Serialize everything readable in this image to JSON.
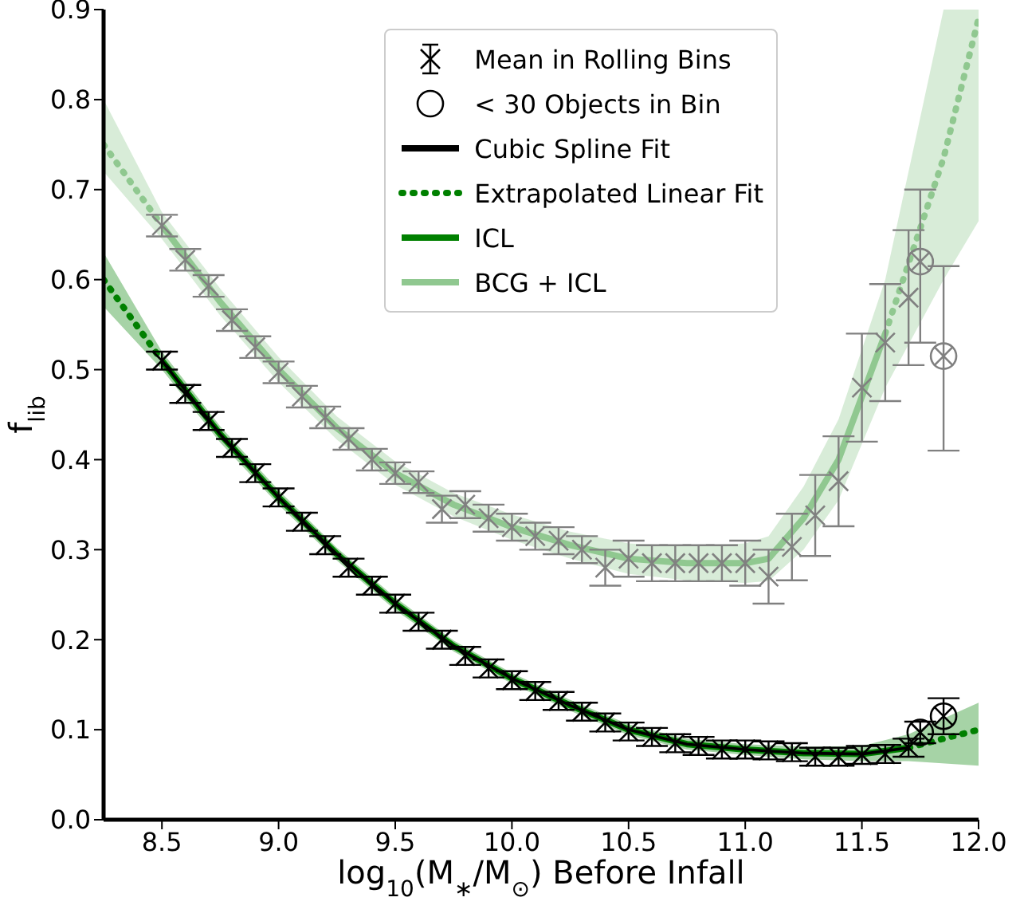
{
  "chart_data": {
    "type": "line",
    "xlabel": "log$_{10}$(M$_{∗}$/M$_{⊙}$) Before Infall",
    "ylabel": "f$_{lib}$",
    "xlim": [
      8.25,
      12.0
    ],
    "xticks": [
      8.5,
      {
        "value": 9,
        "label": "9.0"
      },
      9.5,
      {
        "value": 10,
        "label": "10.0"
      },
      10.5,
      {
        "value": 11,
        "label": "11.0"
      },
      11.5,
      {
        "value": 12,
        "label": "12.0"
      }
    ],
    "ylim": [
      0,
      0.9
    ],
    "yticks": [
      {
        "value": 0,
        "label": "0.0"
      },
      0.1,
      0.2,
      0.3,
      0.4,
      0.5,
      0.6,
      0.7,
      0.8,
      0.9
    ],
    "legend": "top right",
    "series": [
      {
        "name": "Mean in Rolling Bins",
        "type": "scatter",
        "marker": "cross",
        "color": "#000000",
        "x": [
          8.5,
          8.6,
          8.7,
          8.8,
          8.9,
          9.0,
          9.1,
          9.2,
          9.3,
          9.4,
          9.5,
          9.6,
          9.7,
          9.8,
          9.9,
          10.0,
          10.1,
          10.2,
          10.3,
          10.4,
          10.5,
          10.6,
          10.7,
          10.8,
          10.9,
          11.0,
          11.1,
          11.2,
          11.3,
          11.4,
          11.5,
          11.6,
          11.7
        ],
        "values": [
          0.51,
          0.473,
          0.443,
          0.413,
          0.385,
          0.358,
          0.331,
          0.305,
          0.28,
          0.26,
          0.24,
          0.22,
          0.2,
          0.182,
          0.168,
          0.155,
          0.143,
          0.132,
          0.12,
          0.108,
          0.098,
          0.092,
          0.085,
          0.082,
          0.078,
          0.078,
          0.077,
          0.075,
          0.07,
          0.07,
          0.072,
          0.073,
          0.08
        ],
        "errors": [
          0.01,
          0.01,
          0.01,
          0.01,
          0.01,
          0.01,
          0.01,
          0.01,
          0.01,
          0.01,
          0.01,
          0.01,
          0.01,
          0.01,
          0.01,
          0.01,
          0.01,
          0.01,
          0.01,
          0.01,
          0.01,
          0.01,
          0.01,
          0.01,
          0.01,
          0.01,
          0.01,
          0.01,
          0.01,
          0.01,
          0.01,
          0.01,
          0.01
        ]
      },
      {
        "name": "< 30 Objects in Bin",
        "type": "scatter",
        "marker": "circle",
        "color": "#000000",
        "x": [
          11.75,
          11.85
        ],
        "values": [
          0.097,
          0.115
        ],
        "errors": [
          0.012,
          0.02
        ]
      },
      {
        "name": "Cubic Spline Fit",
        "line_style": "solid",
        "color": "#000000",
        "x": [
          8.5,
          8.75,
          9.0,
          9.25,
          9.5,
          9.75,
          10.0,
          10.25,
          10.5,
          10.75,
          11.0,
          11.25,
          11.5,
          11.7
        ],
        "values": [
          0.51,
          0.428,
          0.358,
          0.295,
          0.24,
          0.193,
          0.157,
          0.127,
          0.1,
          0.084,
          0.078,
          0.074,
          0.073,
          0.08
        ]
      },
      {
        "name": "Extrapolated Linear Fit",
        "line_style": "dotted",
        "color": "#008000",
        "x": [
          8.25,
          8.5,
          10.0,
          11.7,
          12.0
        ],
        "values": [
          0.6,
          0.51,
          null,
          0.08,
          0.1
        ],
        "lower": [
          0.57,
          0.5,
          null,
          0.065,
          0.06
        ],
        "upper": [
          0.63,
          0.52,
          null,
          0.095,
          0.13
        ]
      },
      {
        "name": "ICL",
        "line_style": "solid",
        "color": "#008000",
        "x": [
          8.5,
          8.75,
          9.0,
          9.25,
          9.5,
          9.75,
          10.0,
          10.25,
          10.5,
          10.75,
          11.0,
          11.25,
          11.5,
          11.7
        ],
        "values": [
          0.51,
          0.428,
          0.358,
          0.295,
          0.24,
          0.193,
          0.157,
          0.127,
          0.1,
          0.084,
          0.078,
          0.074,
          0.073,
          0.08
        ],
        "lower": [
          0.5,
          0.419,
          0.35,
          0.288,
          0.233,
          0.187,
          0.151,
          0.121,
          0.094,
          0.078,
          0.072,
          0.067,
          0.065,
          0.065
        ],
        "upper": [
          0.52,
          0.437,
          0.366,
          0.302,
          0.247,
          0.199,
          0.163,
          0.133,
          0.106,
          0.09,
          0.084,
          0.081,
          0.082,
          0.095
        ]
      },
      {
        "name": "BCG + ICL",
        "line_style": "solid",
        "color": "#90c890",
        "x": [
          8.5,
          8.75,
          9.0,
          9.25,
          9.5,
          9.75,
          10.0,
          10.25,
          10.5,
          10.75,
          11.0,
          11.1,
          11.25,
          11.4,
          11.6
        ],
        "values": [
          0.66,
          0.575,
          0.5,
          0.435,
          0.385,
          0.35,
          0.325,
          0.305,
          0.29,
          0.285,
          0.285,
          0.29,
          0.335,
          0.4,
          0.54
        ],
        "lower": [
          0.645,
          0.56,
          0.486,
          0.422,
          0.372,
          0.337,
          0.311,
          0.29,
          0.273,
          0.266,
          0.263,
          0.265,
          0.3,
          0.355,
          0.48
        ],
        "upper": [
          0.675,
          0.59,
          0.514,
          0.448,
          0.398,
          0.363,
          0.339,
          0.32,
          0.307,
          0.304,
          0.307,
          0.315,
          0.37,
          0.445,
          0.6
        ]
      },
      {
        "line_style": "dotted",
        "color": "#90c890",
        "x": [
          8.25,
          8.5,
          10.0,
          11.6,
          11.85,
          12.0
        ],
        "values": [
          0.75,
          0.66,
          null,
          0.54,
          0.735,
          0.89
        ],
        "lower": [
          0.72,
          0.645,
          null,
          0.48,
          0.6,
          0.665
        ],
        "upper": [
          0.8,
          0.675,
          null,
          0.6,
          0.9,
          0.9
        ]
      },
      {
        "type": "scatter",
        "marker": "cross",
        "color": "#808080",
        "x": [
          8.5,
          8.6,
          8.7,
          8.8,
          8.9,
          9.0,
          9.1,
          9.2,
          9.3,
          9.4,
          9.5,
          9.6,
          9.7,
          9.8,
          9.9,
          10.0,
          10.1,
          10.2,
          10.3,
          10.4,
          10.5,
          10.6,
          10.7,
          10.8,
          10.9,
          11.0,
          11.1,
          11.2,
          11.3,
          11.4,
          11.5,
          11.6,
          11.7
        ],
        "values": [
          0.66,
          0.622,
          0.593,
          0.555,
          0.525,
          0.497,
          0.47,
          0.447,
          0.423,
          0.4,
          0.385,
          0.375,
          0.345,
          0.35,
          0.335,
          0.325,
          0.315,
          0.31,
          0.3,
          0.28,
          0.29,
          0.285,
          0.285,
          0.285,
          0.285,
          0.285,
          0.27,
          0.303,
          0.338,
          0.376,
          0.48,
          0.53,
          0.58
        ],
        "errors": [
          0.012,
          0.012,
          0.012,
          0.012,
          0.012,
          0.012,
          0.012,
          0.012,
          0.012,
          0.012,
          0.012,
          0.012,
          0.015,
          0.015,
          0.015,
          0.015,
          0.015,
          0.015,
          0.015,
          0.02,
          0.02,
          0.02,
          0.02,
          0.02,
          0.02,
          0.025,
          0.03,
          0.037,
          0.045,
          0.05,
          0.06,
          0.065,
          0.075
        ]
      },
      {
        "type": "scatter",
        "marker": "circle",
        "color": "#808080",
        "x": [
          11.75,
          11.85
        ],
        "values": [
          0.62,
          0.515
        ],
        "errors": [
          [
            0.53,
            0.7
          ],
          [
            0.41,
            0.615
          ]
        ]
      }
    ]
  }
}
